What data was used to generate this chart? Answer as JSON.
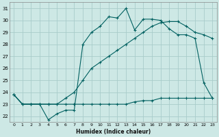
{
  "xlabel": "Humidex (Indice chaleur)",
  "background_color": "#cde8e5",
  "grid_color": "#a8ccca",
  "line_color": "#006060",
  "xlim": [
    -0.5,
    23.5
  ],
  "ylim": [
    21.5,
    31.5
  ],
  "xticks": [
    0,
    1,
    2,
    3,
    4,
    5,
    6,
    7,
    8,
    9,
    10,
    11,
    12,
    13,
    14,
    15,
    16,
    17,
    18,
    19,
    20,
    21,
    22,
    23
  ],
  "yticks": [
    22,
    23,
    24,
    25,
    26,
    27,
    28,
    29,
    30,
    31
  ],
  "series1_x": [
    0,
    1,
    2,
    3,
    4,
    5,
    6,
    7,
    8,
    9,
    10,
    11,
    12,
    13,
    14,
    15,
    16,
    17,
    18,
    19,
    20,
    21,
    22,
    23
  ],
  "series1_y": [
    23.8,
    23.0,
    23.0,
    23.0,
    21.7,
    22.2,
    22.5,
    22.5,
    28.0,
    29.0,
    29.5,
    30.3,
    30.2,
    31.0,
    29.2,
    30.1,
    30.1,
    30.0,
    29.3,
    28.8,
    28.8,
    28.5,
    24.8,
    23.5
  ],
  "series2_x": [
    0,
    1,
    2,
    3,
    4,
    5,
    6,
    7,
    8,
    9,
    10,
    11,
    12,
    13,
    14,
    15,
    16,
    17,
    18,
    19,
    20,
    21,
    22,
    23
  ],
  "series2_y": [
    23.8,
    23.0,
    23.0,
    23.0,
    23.0,
    23.0,
    23.0,
    23.0,
    23.0,
    23.0,
    23.0,
    23.0,
    23.0,
    23.0,
    23.2,
    23.3,
    23.3,
    23.5,
    23.5,
    23.5,
    23.5,
    23.5,
    23.5,
    23.5
  ],
  "series3_x": [
    0,
    1,
    2,
    3,
    4,
    5,
    6,
    7,
    8,
    9,
    10,
    11,
    12,
    13,
    14,
    15,
    16,
    17,
    18,
    19,
    20,
    21,
    22,
    23
  ],
  "series3_y": [
    23.8,
    23.0,
    23.0,
    23.0,
    23.0,
    23.0,
    23.5,
    24.0,
    25.0,
    26.0,
    26.5,
    27.0,
    27.5,
    28.0,
    28.5,
    29.0,
    29.5,
    29.8,
    29.9,
    29.9,
    29.5,
    29.0,
    28.8,
    28.5
  ]
}
